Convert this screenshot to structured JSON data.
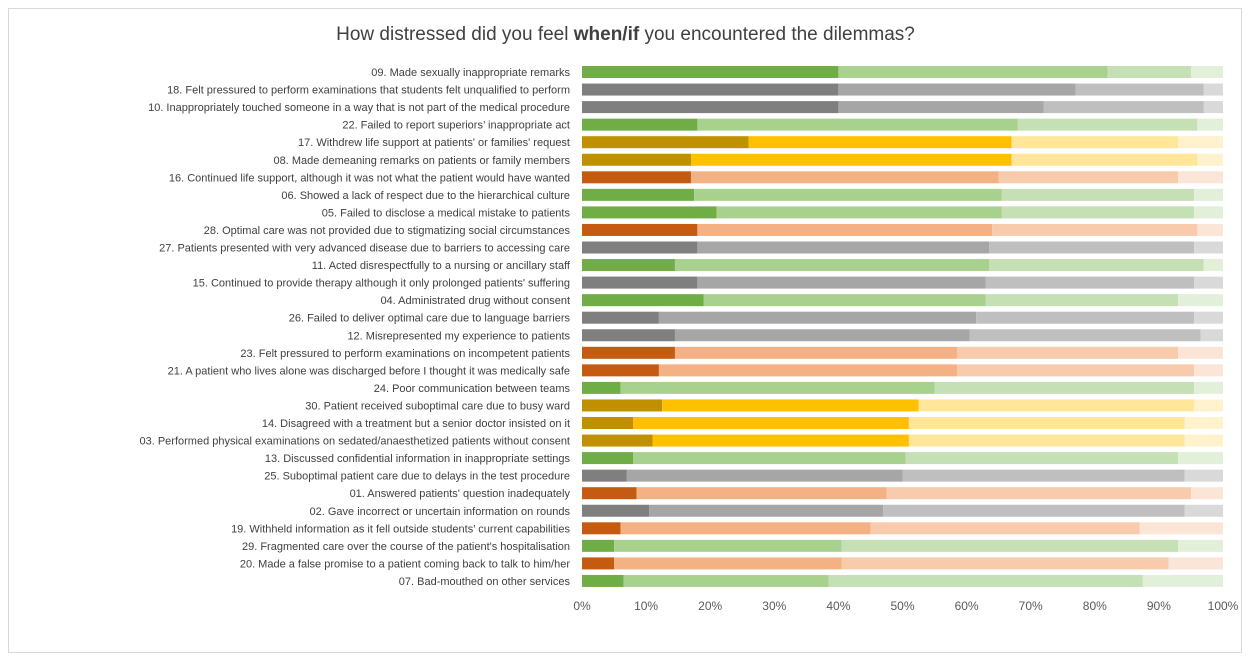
{
  "title": {
    "prefix": "How distressed did you feel ",
    "bold": "when/if",
    "suffix": " you encountered the dilemmas?"
  },
  "colors": {
    "green": [
      "#70ad47",
      "#a9d18e",
      "#c5e0b4",
      "#e2f0d9"
    ],
    "gray": [
      "#7f7f7f",
      "#a6a6a6",
      "#bfbfbf",
      "#d9d9d9"
    ],
    "gold": [
      "#bf9000",
      "#ffc000",
      "#ffe699",
      "#fff2cc"
    ],
    "orange": [
      "#c55a11",
      "#f4b183",
      "#f8cbad",
      "#fbe5d6"
    ]
  },
  "chart_data": {
    "type": "bar",
    "orientation": "horizontal-stacked-100",
    "xlim": [
      0,
      100
    ],
    "xticks": [
      "0%",
      "10%",
      "20%",
      "30%",
      "40%",
      "50%",
      "60%",
      "70%",
      "80%",
      "90%",
      "100%"
    ],
    "grid": false,
    "legend": "none",
    "segments_per_bar": 4,
    "categories": [
      "09. Made sexually inappropriate remarks",
      "18. Felt pressured to perform examinations that students felt unqualified to perform",
      "10. Inappropriately touched someone in a way that is not part of the medical procedure",
      "22. Failed to report superiors’ inappropriate act",
      "17. Withdrew life support at patients' or families' request",
      "08. Made demeaning remarks on patients or family members",
      "16. Continued life support, although it was not what the patient would have wanted",
      "06. Showed a lack of respect due to the hierarchical culture",
      "05. Failed to disclose a medical mistake to patients",
      "28. Optimal care was not provided due to stigmatizing social circumstances",
      "27. Patients presented with very advanced disease due to barriers to accessing care",
      "11. Acted disrespectfully to a nursing or ancillary staff",
      "15. Continued to provide therapy although it only prolonged patients' suffering",
      "04. Administrated drug without consent ",
      "26. Failed to deliver optimal care due to language barriers",
      "12. Misrepresented my experience to patients",
      "23. Felt pressured to perform examinations on incompetent patients",
      "21. A patient who lives alone was discharged before I thought it was medically safe",
      "24. Poor communication between teams",
      "30. Patient received suboptimal care due to busy ward",
      "14. Disagreed with a treatment but a senior doctor insisted on it",
      "03. Performed physical examinations on sedated/anaesthetized patients without consent",
      "13. Discussed confidential information in inappropriate settings",
      "25. Suboptimal patient care due to delays in the test procedure",
      "01. Answered patients' question inadequately",
      "02. Gave incorrect or uncertain information on rounds",
      "19. Withheld information as it fell outside students’ current capabilities",
      "29. Fragmented care over the course of the patient's hospitalisation",
      "20. Made a false promise to a patient coming back to talk to him/her",
      "07. Bad-mouthed on other services"
    ],
    "bar_colors": [
      "green",
      "gray",
      "gray",
      "green",
      "gold",
      "gold",
      "orange",
      "green",
      "green",
      "orange",
      "gray",
      "green",
      "gray",
      "green",
      "gray",
      "gray",
      "orange",
      "orange",
      "green",
      "gold",
      "gold",
      "gold",
      "green",
      "gray",
      "orange",
      "gray",
      "orange",
      "green",
      "orange",
      "green"
    ],
    "values": [
      [
        40,
        42,
        13,
        5
      ],
      [
        40,
        37,
        20,
        3
      ],
      [
        40,
        32,
        25,
        3
      ],
      [
        18,
        50,
        28,
        4
      ],
      [
        26,
        41,
        26,
        7
      ],
      [
        17,
        50,
        29,
        4
      ],
      [
        17,
        48,
        28,
        7
      ],
      [
        17.5,
        48,
        30,
        4.5
      ],
      [
        21,
        44.5,
        30,
        4.5
      ],
      [
        18,
        46,
        32,
        4
      ],
      [
        18,
        45.5,
        32,
        4.5
      ],
      [
        14.5,
        49,
        33.5,
        3
      ],
      [
        18,
        45,
        32.5,
        4.5
      ],
      [
        19,
        44,
        30,
        7
      ],
      [
        12,
        49.5,
        34,
        4.5
      ],
      [
        14.5,
        46,
        36,
        3.5
      ],
      [
        14.5,
        44,
        34.5,
        7
      ],
      [
        12,
        46.5,
        37,
        4.5
      ],
      [
        6,
        49,
        40.5,
        4.5
      ],
      [
        12.5,
        40,
        43,
        4.5
      ],
      [
        8,
        43,
        43,
        6
      ],
      [
        11,
        40,
        43,
        6
      ],
      [
        8,
        42.5,
        42.5,
        7
      ],
      [
        7,
        43,
        44,
        6
      ],
      [
        8.5,
        39,
        47.5,
        5
      ],
      [
        10.5,
        36.5,
        47,
        6
      ],
      [
        6,
        39,
        42,
        13
      ],
      [
        5,
        35.5,
        52.5,
        7
      ],
      [
        5,
        35.5,
        51,
        8.5
      ],
      [
        6.5,
        32,
        49,
        12.5
      ]
    ]
  }
}
